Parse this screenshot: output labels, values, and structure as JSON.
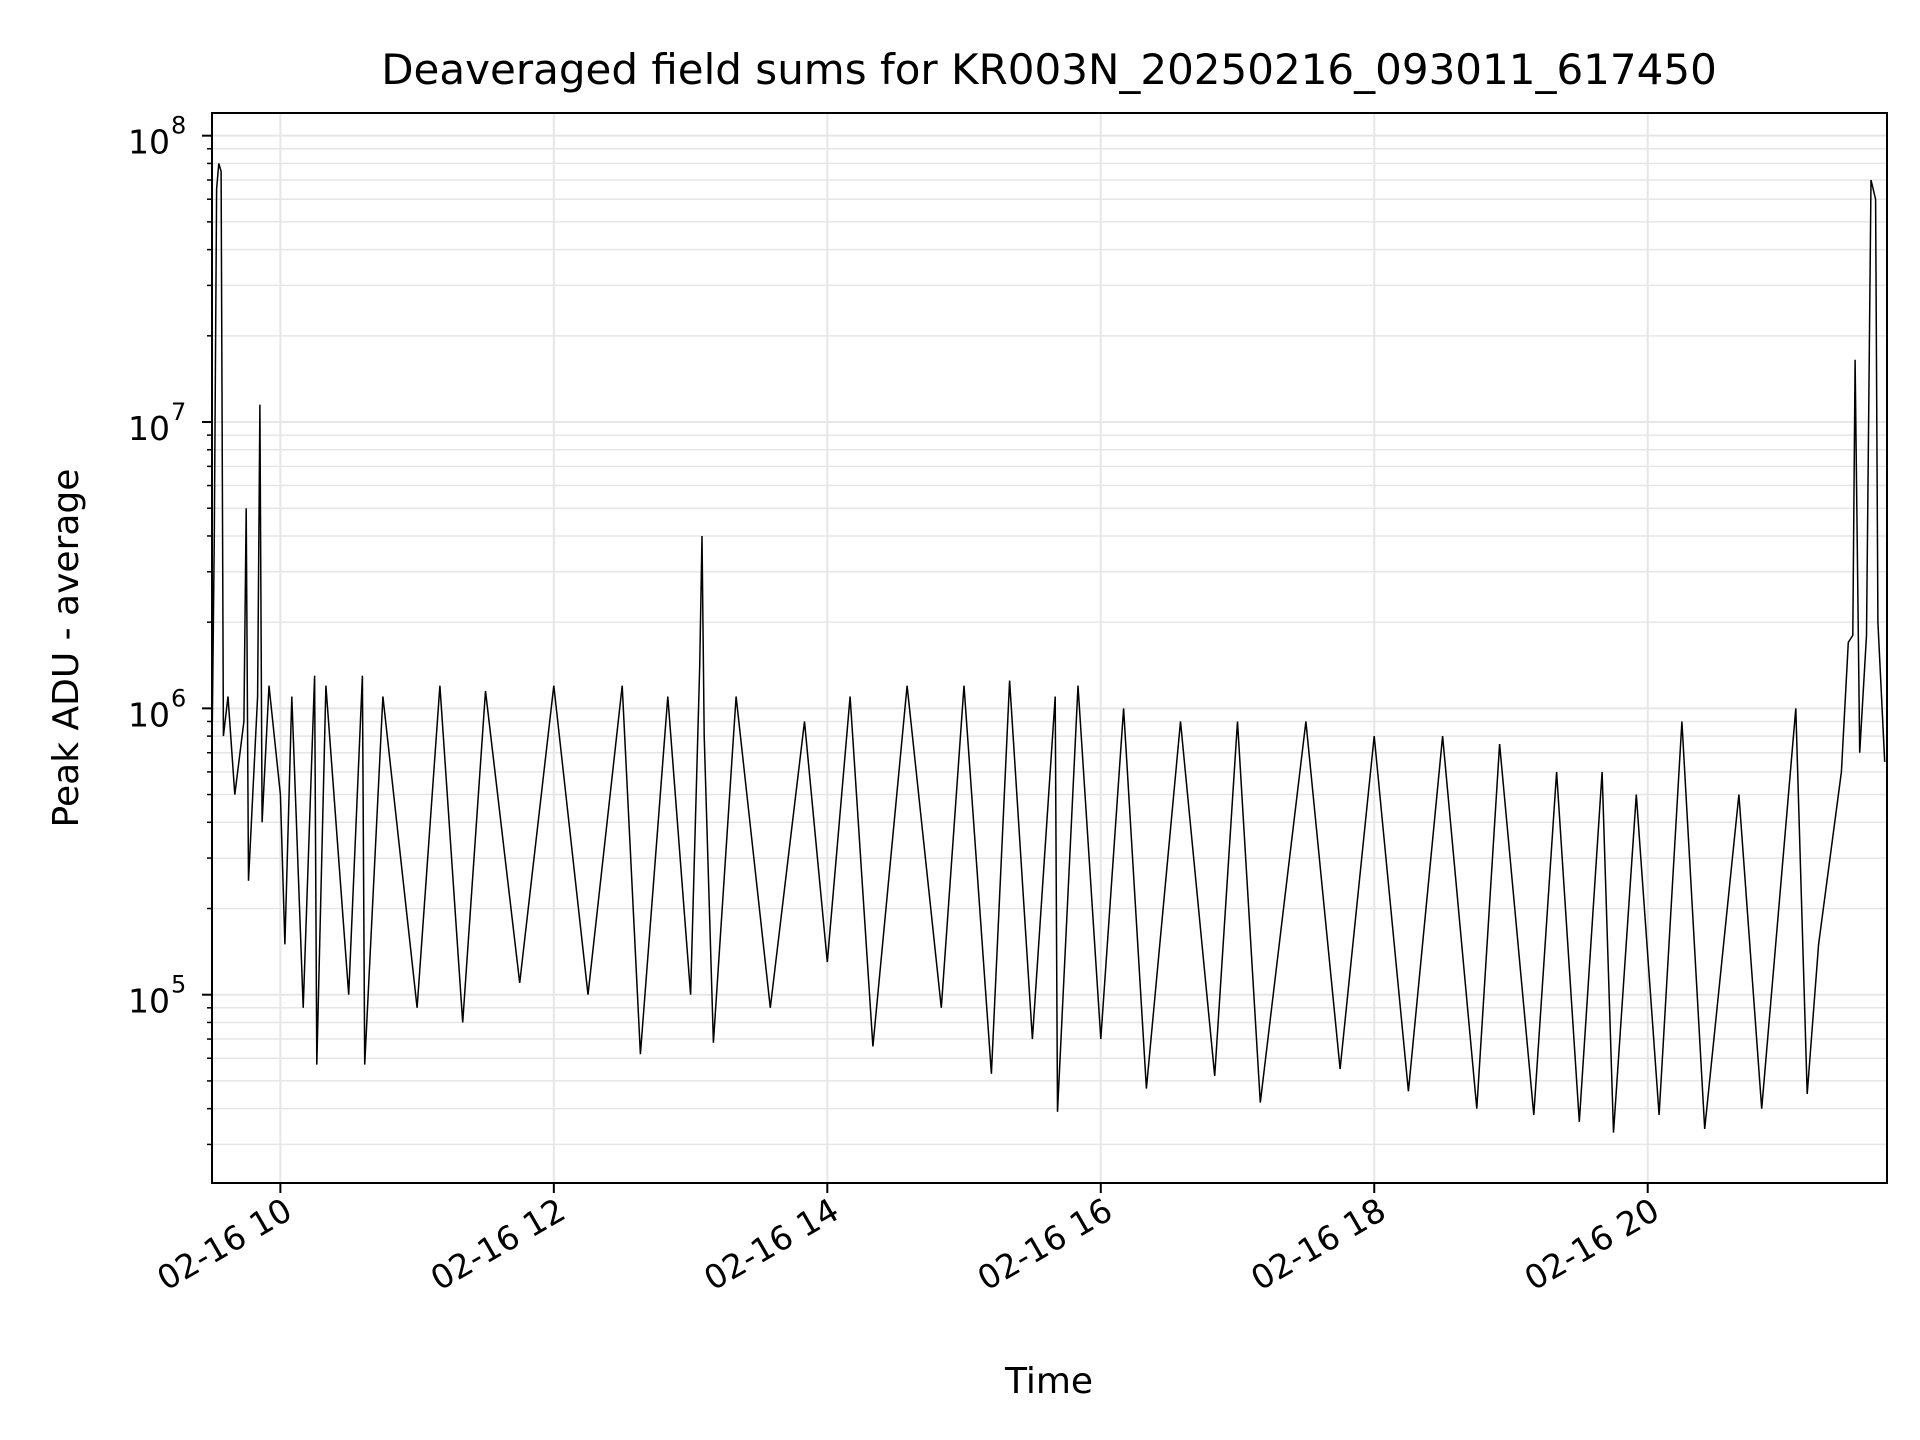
{
  "chart_data": {
    "type": "line",
    "title": "Deaveraged field sums for KR003N_20250216_093011_617450",
    "xlabel": "Time",
    "ylabel": "Peak ADU - average",
    "yscale": "log",
    "grid": true,
    "colors": {
      "line": "#000000",
      "grid": "#e6e6e6",
      "frame": "#000000"
    },
    "xlim": [
      "2025-02-16 09:30",
      "2025-02-16 21:45"
    ],
    "ylim": [
      22000,
      120000000
    ],
    "x_ticks": [
      {
        "value": "2025-02-16 10:00",
        "label": "02-16 10"
      },
      {
        "value": "2025-02-16 12:00",
        "label": "02-16 12"
      },
      {
        "value": "2025-02-16 14:00",
        "label": "02-16 14"
      },
      {
        "value": "2025-02-16 16:00",
        "label": "02-16 16"
      },
      {
        "value": "2025-02-16 18:00",
        "label": "02-16 18"
      },
      {
        "value": "2025-02-16 20:00",
        "label": "02-16 20"
      }
    ],
    "y_ticks": [
      {
        "value": 100000,
        "base": "10",
        "exp": "5"
      },
      {
        "value": 1000000,
        "base": "10",
        "exp": "6"
      },
      {
        "value": 10000000,
        "base": "10",
        "exp": "7"
      },
      {
        "value": 100000000,
        "base": "10",
        "exp": "8"
      }
    ],
    "series": [
      {
        "points": [
          [
            "2025-02-16 09:30",
            700000
          ],
          [
            "2025-02-16 09:31",
            4000000
          ],
          [
            "2025-02-16 09:32",
            65000000
          ],
          [
            "2025-02-16 09:33",
            80000000
          ],
          [
            "2025-02-16 09:34",
            75000000
          ],
          [
            "2025-02-16 09:35",
            800000
          ],
          [
            "2025-02-16 09:37",
            1100000
          ],
          [
            "2025-02-16 09:40",
            500000
          ],
          [
            "2025-02-16 09:44",
            900000
          ],
          [
            "2025-02-16 09:45",
            5000000
          ],
          [
            "2025-02-16 09:46",
            250000
          ],
          [
            "2025-02-16 09:50",
            1100000
          ],
          [
            "2025-02-16 09:51",
            11500000
          ],
          [
            "2025-02-16 09:52",
            400000
          ],
          [
            "2025-02-16 09:55",
            1200000
          ],
          [
            "2025-02-16 10:00",
            500000
          ],
          [
            "2025-02-16 10:02",
            150000
          ],
          [
            "2025-02-16 10:05",
            1100000
          ],
          [
            "2025-02-16 10:10",
            90000
          ],
          [
            "2025-02-16 10:15",
            1300000
          ],
          [
            "2025-02-16 10:16",
            57000
          ],
          [
            "2025-02-16 10:20",
            1200000
          ],
          [
            "2025-02-16 10:30",
            100000
          ],
          [
            "2025-02-16 10:36",
            1300000
          ],
          [
            "2025-02-16 10:37",
            57000
          ],
          [
            "2025-02-16 10:45",
            1100000
          ],
          [
            "2025-02-16 11:00",
            90000
          ],
          [
            "2025-02-16 11:10",
            1200000
          ],
          [
            "2025-02-16 11:20",
            80000
          ],
          [
            "2025-02-16 11:30",
            1150000
          ],
          [
            "2025-02-16 11:45",
            110000
          ],
          [
            "2025-02-16 12:00",
            1200000
          ],
          [
            "2025-02-16 12:15",
            100000
          ],
          [
            "2025-02-16 12:30",
            1200000
          ],
          [
            "2025-02-16 12:38",
            62000
          ],
          [
            "2025-02-16 12:50",
            1100000
          ],
          [
            "2025-02-16 13:00",
            100000
          ],
          [
            "2025-02-16 13:04",
            1400000
          ],
          [
            "2025-02-16 13:05",
            4000000
          ],
          [
            "2025-02-16 13:06",
            800000
          ],
          [
            "2025-02-16 13:10",
            68000
          ],
          [
            "2025-02-16 13:20",
            1100000
          ],
          [
            "2025-02-16 13:35",
            90000
          ],
          [
            "2025-02-16 13:50",
            900000
          ],
          [
            "2025-02-16 14:00",
            130000
          ],
          [
            "2025-02-16 14:10",
            1100000
          ],
          [
            "2025-02-16 14:20",
            66000
          ],
          [
            "2025-02-16 14:35",
            1200000
          ],
          [
            "2025-02-16 14:50",
            90000
          ],
          [
            "2025-02-16 15:00",
            1200000
          ],
          [
            "2025-02-16 15:12",
            53000
          ],
          [
            "2025-02-16 15:20",
            1250000
          ],
          [
            "2025-02-16 15:30",
            70000
          ],
          [
            "2025-02-16 15:40",
            1100000
          ],
          [
            "2025-02-16 15:41",
            39000
          ],
          [
            "2025-02-16 15:50",
            1200000
          ],
          [
            "2025-02-16 16:00",
            70000
          ],
          [
            "2025-02-16 16:10",
            1000000
          ],
          [
            "2025-02-16 16:20",
            47000
          ],
          [
            "2025-02-16 16:35",
            900000
          ],
          [
            "2025-02-16 16:50",
            52000
          ],
          [
            "2025-02-16 17:00",
            900000
          ],
          [
            "2025-02-16 17:10",
            42000
          ],
          [
            "2025-02-16 17:30",
            900000
          ],
          [
            "2025-02-16 17:45",
            55000
          ],
          [
            "2025-02-16 18:00",
            800000
          ],
          [
            "2025-02-16 18:15",
            46000
          ],
          [
            "2025-02-16 18:30",
            800000
          ],
          [
            "2025-02-16 18:45",
            40000
          ],
          [
            "2025-02-16 18:55",
            750000
          ],
          [
            "2025-02-16 19:10",
            38000
          ],
          [
            "2025-02-16 19:20",
            600000
          ],
          [
            "2025-02-16 19:30",
            36000
          ],
          [
            "2025-02-16 19:40",
            600000
          ],
          [
            "2025-02-16 19:45",
            33000
          ],
          [
            "2025-02-16 19:55",
            500000
          ],
          [
            "2025-02-16 20:05",
            38000
          ],
          [
            "2025-02-16 20:15",
            900000
          ],
          [
            "2025-02-16 20:25",
            34000
          ],
          [
            "2025-02-16 20:40",
            500000
          ],
          [
            "2025-02-16 20:50",
            40000
          ],
          [
            "2025-02-16 21:05",
            1000000
          ],
          [
            "2025-02-16 21:10",
            45000
          ],
          [
            "2025-02-16 21:15",
            150000
          ],
          [
            "2025-02-16 21:20",
            300000
          ],
          [
            "2025-02-16 21:25",
            600000
          ],
          [
            "2025-02-16 21:28",
            1700000
          ],
          [
            "2025-02-16 21:30",
            1800000
          ],
          [
            "2025-02-16 21:31",
            16500000
          ],
          [
            "2025-02-16 21:33",
            700000
          ],
          [
            "2025-02-16 21:36",
            1800000
          ],
          [
            "2025-02-16 21:38",
            70000000
          ],
          [
            "2025-02-16 21:40",
            60000000
          ],
          [
            "2025-02-16 21:41",
            2000000
          ],
          [
            "2025-02-16 21:44",
            650000
          ]
        ]
      }
    ]
  }
}
